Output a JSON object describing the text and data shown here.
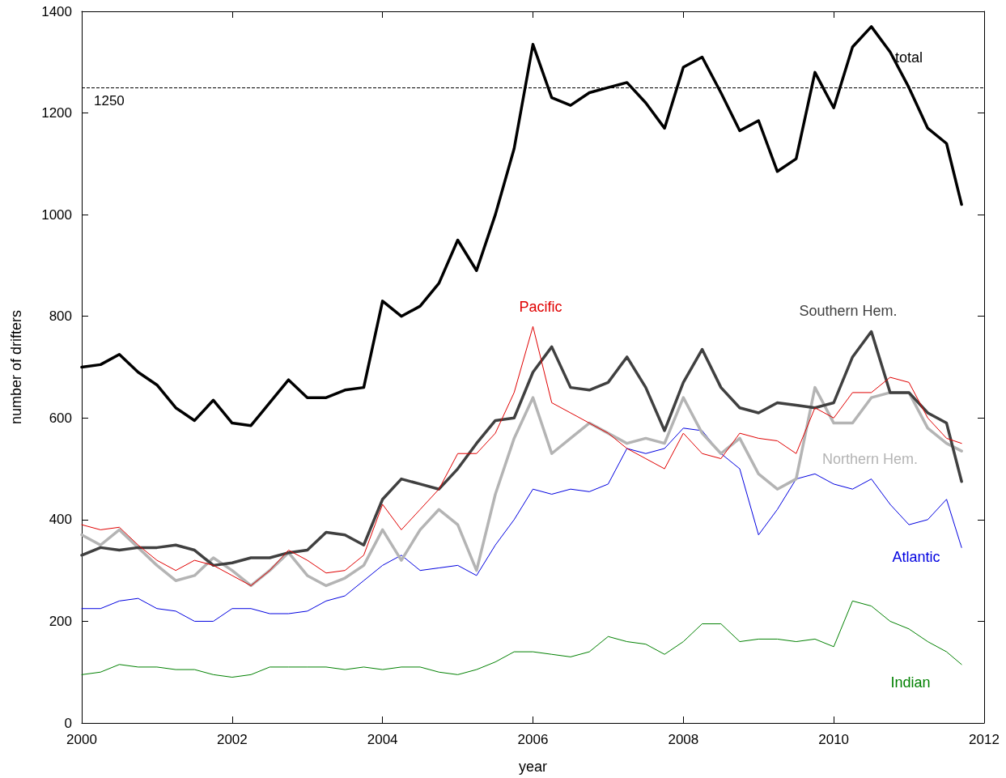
{
  "chart_data": {
    "type": "line",
    "xlabel": "year",
    "ylabel": "number of drifters",
    "x": [
      2000,
      2000.25,
      2000.5,
      2000.75,
      2001,
      2001.25,
      2001.5,
      2001.75,
      2002,
      2002.25,
      2002.5,
      2002.75,
      2003,
      2003.25,
      2003.5,
      2003.75,
      2004,
      2004.25,
      2004.5,
      2004.75,
      2005,
      2005.25,
      2005.5,
      2005.75,
      2006,
      2006.25,
      2006.5,
      2006.75,
      2007,
      2007.25,
      2007.5,
      2007.75,
      2008,
      2008.25,
      2008.5,
      2008.75,
      2009,
      2009.25,
      2009.5,
      2009.75,
      2010,
      2010.25,
      2010.5,
      2010.75,
      2011,
      2011.25,
      2011.5,
      2011.7
    ],
    "series": [
      {
        "name": "total",
        "color": "#000000",
        "values": [
          700,
          705,
          725,
          690,
          665,
          620,
          595,
          635,
          590,
          585,
          630,
          675,
          640,
          640,
          655,
          660,
          830,
          800,
          820,
          865,
          950,
          890,
          1000,
          1130,
          1335,
          1230,
          1215,
          1240,
          1250,
          1260,
          1220,
          1170,
          1290,
          1310,
          1240,
          1165,
          1185,
          1085,
          1110,
          1280,
          1210,
          1330,
          1370,
          1320,
          1250,
          1170,
          1140,
          1020
        ]
      },
      {
        "name": "Pacific",
        "color": "#e00000",
        "values": [
          390,
          380,
          385,
          350,
          320,
          300,
          320,
          310,
          290,
          270,
          300,
          340,
          320,
          295,
          300,
          330,
          430,
          380,
          420,
          460,
          530,
          530,
          570,
          650,
          780,
          630,
          610,
          590,
          570,
          540,
          520,
          500,
          570,
          530,
          520,
          570,
          560,
          555,
          530,
          620,
          600,
          650,
          650,
          680,
          670,
          600,
          560,
          550
        ]
      },
      {
        "name": "Southern Hem.",
        "color": "#404040",
        "values": [
          330,
          345,
          340,
          345,
          345,
          350,
          340,
          310,
          315,
          325,
          325,
          335,
          340,
          375,
          370,
          350,
          440,
          480,
          470,
          460,
          500,
          550,
          595,
          600,
          690,
          740,
          660,
          655,
          670,
          720,
          660,
          575,
          670,
          735,
          660,
          620,
          610,
          630,
          625,
          620,
          630,
          720,
          770,
          650,
          650,
          610,
          590,
          475
        ]
      },
      {
        "name": "Northern Hem.",
        "color": "#b4b4b4",
        "values": [
          370,
          350,
          380,
          345,
          310,
          280,
          290,
          325,
          300,
          270,
          300,
          335,
          290,
          270,
          285,
          310,
          380,
          320,
          380,
          420,
          390,
          300,
          450,
          560,
          640,
          530,
          560,
          590,
          570,
          550,
          560,
          550,
          640,
          570,
          530,
          560,
          490,
          460,
          480,
          660,
          590,
          590,
          640,
          650,
          650,
          580,
          550,
          535
        ]
      },
      {
        "name": "Atlantic",
        "color": "#0000e0",
        "values": [
          225,
          225,
          240,
          245,
          225,
          220,
          200,
          200,
          225,
          225,
          215,
          215,
          220,
          240,
          250,
          280,
          310,
          330,
          300,
          305,
          310,
          290,
          350,
          400,
          460,
          450,
          460,
          455,
          470,
          540,
          530,
          540,
          580,
          575,
          530,
          500,
          370,
          420,
          480,
          490,
          470,
          460,
          480,
          430,
          390,
          400,
          440,
          345
        ]
      },
      {
        "name": "Indian",
        "color": "#008000",
        "values": [
          95,
          100,
          115,
          110,
          110,
          105,
          105,
          95,
          90,
          95,
          110,
          110,
          110,
          110,
          105,
          110,
          105,
          110,
          110,
          100,
          95,
          105,
          120,
          140,
          140,
          135,
          130,
          140,
          170,
          160,
          155,
          135,
          160,
          195,
          195,
          160,
          165,
          165,
          160,
          165,
          150,
          240,
          230,
          200,
          185,
          160,
          140,
          115
        ]
      }
    ],
    "xlim": [
      2000,
      2012
    ],
    "xticks": [
      2000,
      2002,
      2004,
      2006,
      2008,
      2010,
      2012
    ],
    "ylim": [
      0,
      1400
    ],
    "yticks": [
      0,
      200,
      400,
      600,
      800,
      1000,
      1200,
      1400
    ],
    "ref_lines": [
      {
        "axis": "y",
        "value": 1250,
        "label": "1250",
        "color": "#000000",
        "line_style": "dashed"
      }
    ],
    "grid": false,
    "legend": false,
    "marker": "none",
    "line_style": "solid"
  }
}
